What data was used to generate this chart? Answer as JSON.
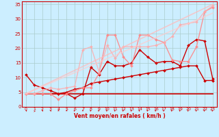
{
  "background_color": "#cceeff",
  "grid_color": "#aacccc",
  "line_color_dark": "#cc0000",
  "xlabel": "Vent moyen/en rafales ( km/h )",
  "xlabel_color": "#cc0000",
  "ylabel_ticks": [
    0,
    5,
    10,
    15,
    20,
    25,
    30,
    35
  ],
  "xlim": [
    -0.5,
    23.5
  ],
  "ylim": [
    0,
    36
  ],
  "x_ticks": [
    0,
    1,
    2,
    3,
    4,
    5,
    6,
    7,
    8,
    9,
    10,
    11,
    12,
    13,
    14,
    15,
    16,
    17,
    18,
    19,
    20,
    21,
    22,
    23
  ],
  "series": [
    {
      "x": [
        0,
        1,
        2,
        3,
        4,
        5,
        6,
        7,
        8,
        9,
        10,
        11,
        12,
        13,
        14,
        15,
        16,
        17,
        18,
        19,
        20,
        21,
        22,
        23
      ],
      "y": [
        4.5,
        4.5,
        4.5,
        4.5,
        4.5,
        4.5,
        4.5,
        4.5,
        4.5,
        4.5,
        4.5,
        4.5,
        4.5,
        4.5,
        4.5,
        4.5,
        4.5,
        4.5,
        4.5,
        4.5,
        4.5,
        4.5,
        4.5,
        4.5
      ],
      "color": "#cc0000",
      "lw": 1.2,
      "marker": null,
      "alpha": 1.0
    },
    {
      "x": [
        0,
        1,
        2,
        3,
        4,
        5,
        6,
        7,
        8,
        9,
        10,
        11,
        12,
        13,
        14,
        15,
        16,
        17,
        18,
        19,
        20,
        21,
        22,
        23
      ],
      "y": [
        4.5,
        4.5,
        4.5,
        4.5,
        4.5,
        5.0,
        6.0,
        6.5,
        8.0,
        8.5,
        9.0,
        9.5,
        10.0,
        10.5,
        11.0,
        11.5,
        12.0,
        12.5,
        13.0,
        13.5,
        14.0,
        14.0,
        9.0,
        9.0
      ],
      "color": "#cc0000",
      "lw": 1.0,
      "marker": "D",
      "markersize": 2.0,
      "alpha": 1.0
    },
    {
      "x": [
        0,
        1,
        2,
        3,
        4,
        5,
        6,
        7,
        8,
        9,
        10,
        11,
        12,
        13,
        14,
        15,
        16,
        17,
        18,
        19,
        20,
        21,
        22,
        23
      ],
      "y": [
        11.0,
        7.5,
        6.5,
        5.5,
        4.5,
        4.5,
        3.0,
        4.5,
        13.5,
        11.0,
        15.5,
        14.0,
        14.0,
        15.0,
        19.5,
        17.0,
        15.0,
        15.5,
        15.5,
        14.0,
        21.0,
        23.0,
        22.5,
        9.5
      ],
      "color": "#cc0000",
      "lw": 1.0,
      "marker": "D",
      "markersize": 2.0,
      "alpha": 1.0
    },
    {
      "x": [
        0,
        1,
        2,
        3,
        4,
        5,
        6,
        7,
        8,
        9,
        10,
        11,
        12,
        13,
        14,
        15,
        16,
        17,
        18,
        19,
        20,
        21,
        22,
        23
      ],
      "y": [
        4.5,
        4.5,
        4.5,
        4.5,
        2.5,
        4.5,
        5.5,
        6.5,
        6.5,
        11.5,
        24.5,
        24.5,
        17.0,
        14.0,
        24.5,
        24.5,
        23.0,
        22.0,
        16.0,
        15.5,
        15.5,
        20.5,
        32.5,
        34.0
      ],
      "color": "#ff8888",
      "lw": 1.0,
      "marker": "D",
      "markersize": 2.0,
      "alpha": 0.9
    },
    {
      "x": [
        0,
        1,
        2,
        3,
        4,
        5,
        6,
        7,
        8,
        9,
        10,
        11,
        12,
        13,
        14,
        15,
        16,
        17,
        18,
        19,
        20,
        21,
        22,
        23
      ],
      "y": [
        4.5,
        4.5,
        5.5,
        6.5,
        6.0,
        6.5,
        7.0,
        19.5,
        20.5,
        12.0,
        21.0,
        16.5,
        20.5,
        20.5,
        20.5,
        20.5,
        21.0,
        22.0,
        24.0,
        28.0,
        28.5,
        29.0,
        32.5,
        34.5
      ],
      "color": "#ffaaaa",
      "lw": 1.0,
      "marker": "D",
      "markersize": 2.0,
      "alpha": 0.8
    },
    {
      "x": [
        0,
        23
      ],
      "y": [
        4.5,
        35.0
      ],
      "color": "#ffbbbb",
      "lw": 1.2,
      "marker": null,
      "alpha": 0.75
    },
    {
      "x": [
        0,
        23
      ],
      "y": [
        4.5,
        32.0
      ],
      "color": "#ffcccc",
      "lw": 1.2,
      "marker": null,
      "alpha": 0.7
    }
  ],
  "arrows_x": [
    0,
    1,
    2,
    3,
    4,
    5,
    6,
    7,
    8,
    9,
    10,
    11,
    12,
    13,
    14,
    15,
    16,
    17,
    18,
    19,
    20,
    21,
    22,
    23
  ],
  "arrow_angles_deg": [
    45,
    0,
    45,
    45,
    90,
    90,
    135,
    90,
    135,
    135,
    135,
    135,
    135,
    135,
    135,
    135,
    135,
    135,
    135,
    135,
    135,
    135,
    135,
    135
  ]
}
